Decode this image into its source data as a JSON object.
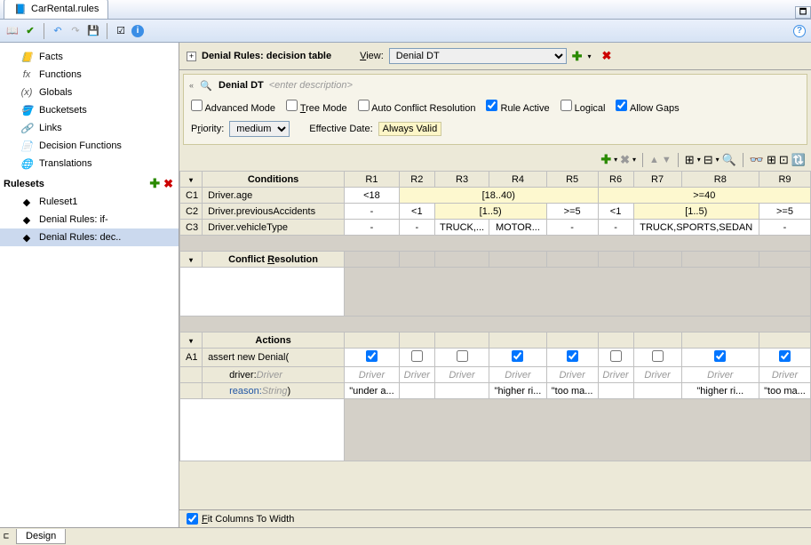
{
  "tab_title": "CarRental.rules",
  "sidebar": {
    "items": [
      {
        "label": "Facts",
        "icon": "📒"
      },
      {
        "label": "Functions",
        "icon": "fx"
      },
      {
        "label": "Globals",
        "icon": "(x)"
      },
      {
        "label": "Bucketsets",
        "icon": "🪣"
      },
      {
        "label": "Links",
        "icon": "🔗"
      },
      {
        "label": "Decision Functions",
        "icon": "📄"
      },
      {
        "label": "Translations",
        "icon": "🌐"
      }
    ],
    "rulesets_label": "Rulesets",
    "rulesets": [
      {
        "label": "Ruleset1"
      },
      {
        "label": "Denial Rules: if-"
      },
      {
        "label": "Denial Rules: dec..",
        "selected": true
      }
    ]
  },
  "panel": {
    "title": "Denial Rules: decision table",
    "view_label": "View:",
    "view_value": "Denial DT"
  },
  "dt": {
    "name": "Denial DT",
    "desc_placeholder": "<enter description>",
    "advanced": {
      "checked": false,
      "label": "Advanced Mode"
    },
    "tree": {
      "checked": false,
      "label": "Tree Mode"
    },
    "autoconflict": {
      "checked": false,
      "label": "Auto Conflict Resolution"
    },
    "ruleactive": {
      "checked": true,
      "label": "Rule Active"
    },
    "logical": {
      "checked": false,
      "label": "Logical"
    },
    "allowgaps": {
      "checked": true,
      "label": "Allow Gaps"
    },
    "priority_label": "Priority:",
    "priority_value": "medium",
    "effdate_label": "Effective Date:",
    "effdate_value": "Always Valid"
  },
  "grid": {
    "conditions_label": "Conditions",
    "conflict_label": "Conflict Resolution",
    "actions_label": "Actions",
    "rule_cols": [
      "R1",
      "R2",
      "R3",
      "R4",
      "R5",
      "R6",
      "R7",
      "R8",
      "R9"
    ],
    "conditions": [
      {
        "id": "C1",
        "expr": "Driver.age",
        "cells": [
          "<18",
          {
            "span": 4,
            "val": "[18..40)",
            "yellow": true
          },
          {
            "span": 4,
            "val": ">=40",
            "yellow": true
          }
        ]
      },
      {
        "id": "C2",
        "expr": "Driver.previousAccidents",
        "cells": [
          "-",
          "<1",
          {
            "span": 2,
            "val": "[1..5)",
            "yellow": true
          },
          ">=5",
          "<1",
          {
            "span": 2,
            "val": "[1..5)",
            "yellow": true
          },
          ">=5"
        ]
      },
      {
        "id": "C3",
        "expr": "Driver.vehicleType",
        "cells": [
          "-",
          "-",
          "TRUCK,...",
          "MOTOR...",
          "-",
          "-",
          {
            "span": 2,
            "val": "TRUCK,SPORTS,SEDAN"
          },
          "-"
        ]
      }
    ],
    "actions": {
      "id": "A1",
      "label": "assert new Denial(",
      "driver_label": "driver:",
      "driver_type": "Driver",
      "reason_label": "reason:",
      "reason_type": "String",
      "close": ")",
      "enabled": [
        true,
        false,
        false,
        true,
        true,
        false,
        false,
        true,
        true
      ],
      "driver_vals": [
        "Driver",
        "Driver",
        "Driver",
        "Driver",
        "Driver",
        "Driver",
        "Driver",
        "Driver",
        "Driver"
      ],
      "reason_vals": [
        "\"under a...",
        "",
        "",
        "\"higher ri...",
        "\"too ma...",
        "",
        "",
        "\"higher ri...",
        "\"too ma..."
      ]
    }
  },
  "fit_columns_label": "Fit Columns To Width",
  "fit_columns_checked": true,
  "bottom_tab": "Design"
}
